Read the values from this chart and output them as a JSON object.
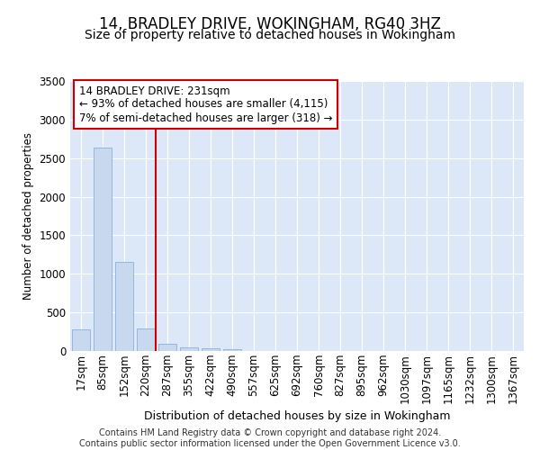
{
  "title": "14, BRADLEY DRIVE, WOKINGHAM, RG40 3HZ",
  "subtitle": "Size of property relative to detached houses in Wokingham",
  "xlabel": "Distribution of detached houses by size in Wokingham",
  "ylabel": "Number of detached properties",
  "bar_color": "#c8d8ee",
  "bar_edge_color": "#8ab0d8",
  "background_color": "#dce8f8",
  "grid_color": "#ffffff",
  "vline_color": "#cc0000",
  "vline_x": 3.45,
  "annotation_text": "14 BRADLEY DRIVE: 231sqm\n← 93% of detached houses are smaller (4,115)\n7% of semi-detached houses are larger (318) →",
  "annotation_box_color": "#ffffff",
  "annotation_box_edge": "#cc0000",
  "categories": [
    "17sqm",
    "85sqm",
    "152sqm",
    "220sqm",
    "287sqm",
    "355sqm",
    "422sqm",
    "490sqm",
    "557sqm",
    "625sqm",
    "692sqm",
    "760sqm",
    "827sqm",
    "895sqm",
    "962sqm",
    "1030sqm",
    "1097sqm",
    "1165sqm",
    "1232sqm",
    "1300sqm",
    "1367sqm"
  ],
  "values": [
    285,
    2640,
    1150,
    290,
    90,
    45,
    30,
    20,
    0,
    0,
    0,
    0,
    0,
    0,
    0,
    0,
    0,
    0,
    0,
    0,
    0
  ],
  "ylim": [
    0,
    3500
  ],
  "yticks": [
    0,
    500,
    1000,
    1500,
    2000,
    2500,
    3000,
    3500
  ],
  "footer": "Contains HM Land Registry data © Crown copyright and database right 2024.\nContains public sector information licensed under the Open Government Licence v3.0.",
  "footer_fontsize": 7.0,
  "title_fontsize": 12,
  "subtitle_fontsize": 10,
  "xlabel_fontsize": 9,
  "ylabel_fontsize": 8.5,
  "tick_fontsize": 8.5,
  "annot_fontsize": 8.5
}
